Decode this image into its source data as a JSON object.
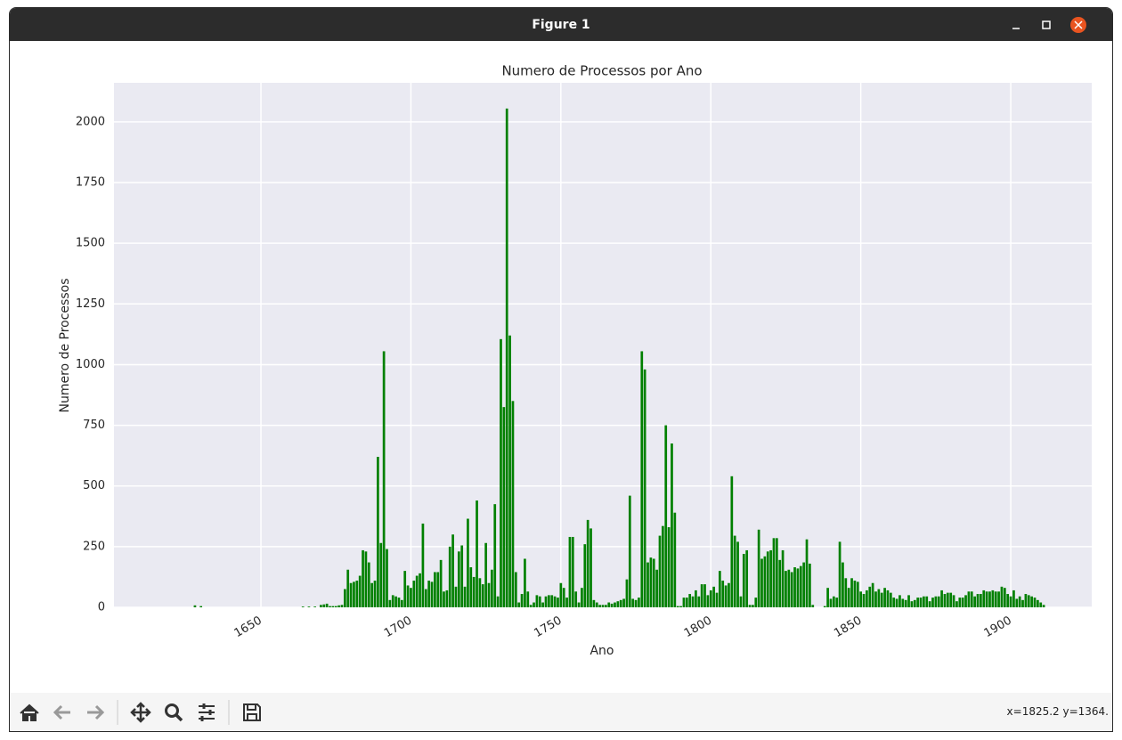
{
  "window": {
    "title": "Figure 1"
  },
  "status": "x=1825.2 y=1364.",
  "chart_data": {
    "type": "bar",
    "title": "Numero de Processos por Ano",
    "xlabel": "Ano",
    "ylabel": "Numero de Processos",
    "color": "#008000",
    "grid": true,
    "xlim": [
      1601,
      1927
    ],
    "ylim": [
      0,
      2161
    ],
    "xticks": [
      1650,
      1700,
      1750,
      1800,
      1850,
      1900
    ],
    "yticks": [
      0,
      250,
      500,
      750,
      1000,
      1250,
      1500,
      1750,
      2000
    ],
    "x": [
      1628,
      1630,
      1664,
      1666,
      1668,
      1670,
      1671,
      1672,
      1673,
      1674,
      1675,
      1676,
      1677,
      1678,
      1679,
      1680,
      1681,
      1682,
      1683,
      1684,
      1685,
      1686,
      1687,
      1688,
      1689,
      1690,
      1691,
      1692,
      1693,
      1694,
      1695,
      1696,
      1697,
      1698,
      1699,
      1700,
      1701,
      1702,
      1703,
      1704,
      1705,
      1706,
      1707,
      1708,
      1709,
      1710,
      1711,
      1712,
      1713,
      1714,
      1715,
      1716,
      1717,
      1718,
      1719,
      1720,
      1721,
      1722,
      1723,
      1724,
      1725,
      1726,
      1727,
      1728,
      1729,
      1730,
      1731,
      1732,
      1733,
      1734,
      1735,
      1736,
      1737,
      1738,
      1739,
      1740,
      1741,
      1742,
      1743,
      1744,
      1745,
      1746,
      1747,
      1748,
      1749,
      1750,
      1751,
      1752,
      1753,
      1754,
      1755,
      1756,
      1757,
      1758,
      1759,
      1760,
      1761,
      1762,
      1763,
      1764,
      1765,
      1766,
      1767,
      1768,
      1769,
      1770,
      1771,
      1772,
      1773,
      1774,
      1775,
      1776,
      1777,
      1778,
      1779,
      1780,
      1781,
      1782,
      1783,
      1784,
      1785,
      1786,
      1787,
      1788,
      1789,
      1790,
      1791,
      1792,
      1793,
      1794,
      1795,
      1796,
      1797,
      1798,
      1799,
      1800,
      1801,
      1802,
      1803,
      1804,
      1805,
      1806,
      1807,
      1808,
      1809,
      1810,
      1811,
      1812,
      1813,
      1814,
      1815,
      1816,
      1817,
      1818,
      1819,
      1820,
      1821,
      1822,
      1823,
      1824,
      1825,
      1826,
      1827,
      1828,
      1829,
      1830,
      1831,
      1832,
      1833,
      1834,
      1838,
      1839,
      1840,
      1841,
      1842,
      1843,
      1844,
      1845,
      1846,
      1847,
      1848,
      1849,
      1850,
      1851,
      1852,
      1853,
      1854,
      1855,
      1856,
      1857,
      1858,
      1859,
      1860,
      1861,
      1862,
      1863,
      1864,
      1865,
      1866,
      1867,
      1868,
      1869,
      1870,
      1871,
      1872,
      1873,
      1874,
      1875,
      1876,
      1877,
      1878,
      1879,
      1880,
      1881,
      1882,
      1883,
      1884,
      1885,
      1886,
      1887,
      1888,
      1889,
      1890,
      1891,
      1892,
      1893,
      1894,
      1895,
      1896,
      1897,
      1898,
      1899,
      1900,
      1901,
      1902,
      1903,
      1904,
      1905,
      1906,
      1907,
      1908,
      1909,
      1910,
      1911
    ],
    "values": [
      8,
      5,
      3,
      3,
      3,
      10,
      12,
      15,
      5,
      5,
      5,
      8,
      10,
      75,
      155,
      100,
      105,
      110,
      130,
      235,
      230,
      185,
      100,
      110,
      620,
      265,
      1055,
      240,
      30,
      50,
      45,
      40,
      30,
      150,
      90,
      80,
      110,
      130,
      140,
      345,
      75,
      110,
      105,
      145,
      145,
      195,
      65,
      70,
      250,
      300,
      85,
      230,
      255,
      85,
      365,
      165,
      125,
      440,
      120,
      95,
      265,
      100,
      155,
      425,
      45,
      1105,
      825,
      2055,
      1120,
      850,
      145,
      20,
      55,
      200,
      65,
      10,
      20,
      50,
      45,
      20,
      45,
      50,
      50,
      45,
      40,
      100,
      80,
      40,
      290,
      290,
      65,
      20,
      80,
      260,
      360,
      325,
      30,
      20,
      10,
      10,
      10,
      20,
      15,
      20,
      25,
      30,
      35,
      115,
      460,
      35,
      30,
      40,
      1055,
      980,
      185,
      205,
      200,
      155,
      295,
      335,
      750,
      330,
      675,
      390,
      5,
      5,
      40,
      40,
      55,
      45,
      70,
      45,
      95,
      95,
      50,
      70,
      85,
      60,
      150,
      110,
      90,
      100,
      540,
      295,
      270,
      45,
      220,
      235,
      10,
      10,
      40,
      320,
      200,
      210,
      230,
      235,
      285,
      285,
      195,
      235,
      150,
      155,
      145,
      165,
      160,
      170,
      185,
      280,
      180,
      10,
      5,
      80,
      35,
      45,
      40,
      270,
      185,
      120,
      80,
      120,
      110,
      105,
      65,
      55,
      70,
      85,
      100,
      65,
      75,
      60,
      80,
      70,
      60,
      40,
      35,
      50,
      35,
      30,
      50,
      25,
      30,
      40,
      40,
      45,
      45,
      25,
      40,
      45,
      45,
      70,
      55,
      60,
      60,
      50,
      25,
      40,
      40,
      50,
      65,
      65,
      45,
      55,
      55,
      70,
      65,
      65,
      70,
      65,
      65,
      85,
      80,
      55,
      45,
      70,
      35,
      45,
      30,
      55,
      50,
      45,
      40,
      30,
      20,
      10
    ]
  }
}
